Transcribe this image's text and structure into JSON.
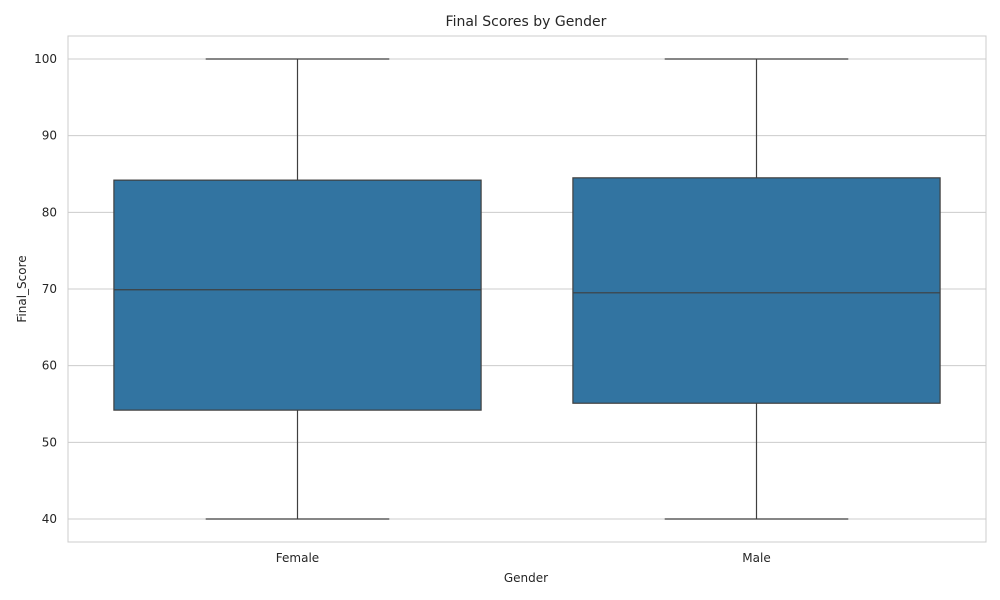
{
  "chart_data": {
    "type": "box",
    "title": "Final Scores by Gender",
    "xlabel": "Gender",
    "ylabel": "Final_Score",
    "categories": [
      "Female",
      "Male"
    ],
    "series": [
      {
        "name": "",
        "values": [
          {
            "min": 40,
            "q1": 54.2,
            "median": 69.9,
            "q3": 84.2,
            "max": 100
          },
          {
            "min": 40,
            "q1": 55.1,
            "median": 69.5,
            "q3": 84.5,
            "max": 100
          }
        ]
      }
    ],
    "ylim": [
      37,
      103
    ],
    "yticks": [
      40,
      50,
      60,
      70,
      80,
      90,
      100
    ],
    "grid": true,
    "legend": "none",
    "colors": {
      "box_fill": "#3274A1",
      "line": "#3F3F3F",
      "grid": "#CCCCCC",
      "frame": "#CCCCCC",
      "text": "#262626"
    }
  }
}
